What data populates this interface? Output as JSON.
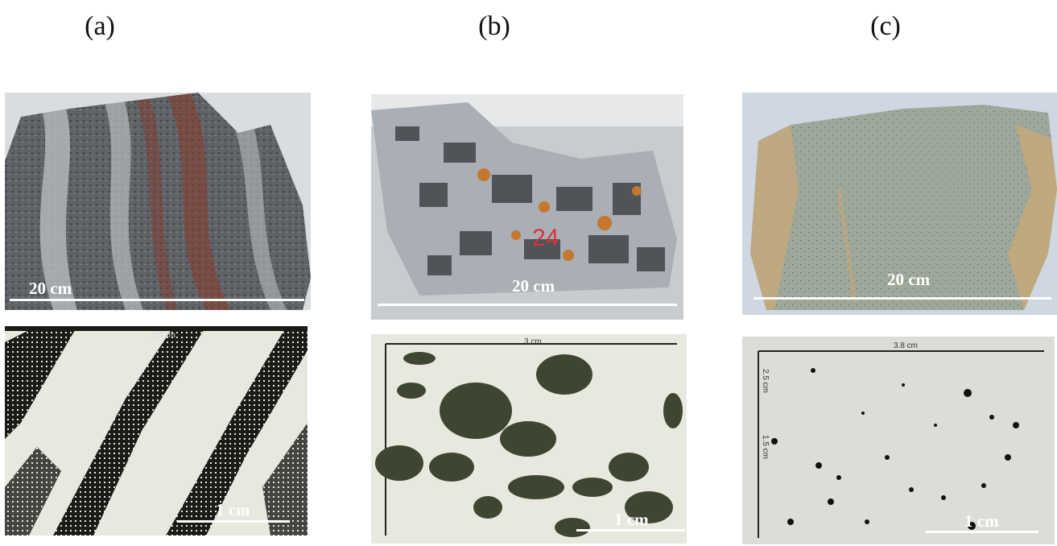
{
  "panels": [
    {
      "label": "(a)",
      "hand_scale": "20 cm",
      "thin_scale": "1 cm",
      "thin_top_measure": "3.2 cm"
    },
    {
      "label": "(b)",
      "hand_scale": "20 cm",
      "thin_scale": "1 cm",
      "thin_top_measure": "3 cm"
    },
    {
      "label": "(c)",
      "hand_scale": "20 cm",
      "thin_scale": "1 cm",
      "thin_top_measure": "3.8 cm",
      "thin_side_measure_1": "2.5 cm",
      "thin_side_measure_2": "1.5 cm"
    }
  ],
  "sample_mark": "24",
  "colors": {
    "rock_a_base": "#6b6e72",
    "rock_a_band": "#b9bdbf",
    "rock_a_red": "#8a3a2a",
    "rock_b_base": "#a9afb4",
    "rock_b_dark": "#4f5459",
    "rock_b_orange": "#c4772f",
    "rock_c_base": "#9ea89a",
    "rock_c_tan": "#c8a978",
    "thin_bg": "#e9e8df",
    "thin_dark": "#1a1c18",
    "thin_green": "#3e4530"
  }
}
